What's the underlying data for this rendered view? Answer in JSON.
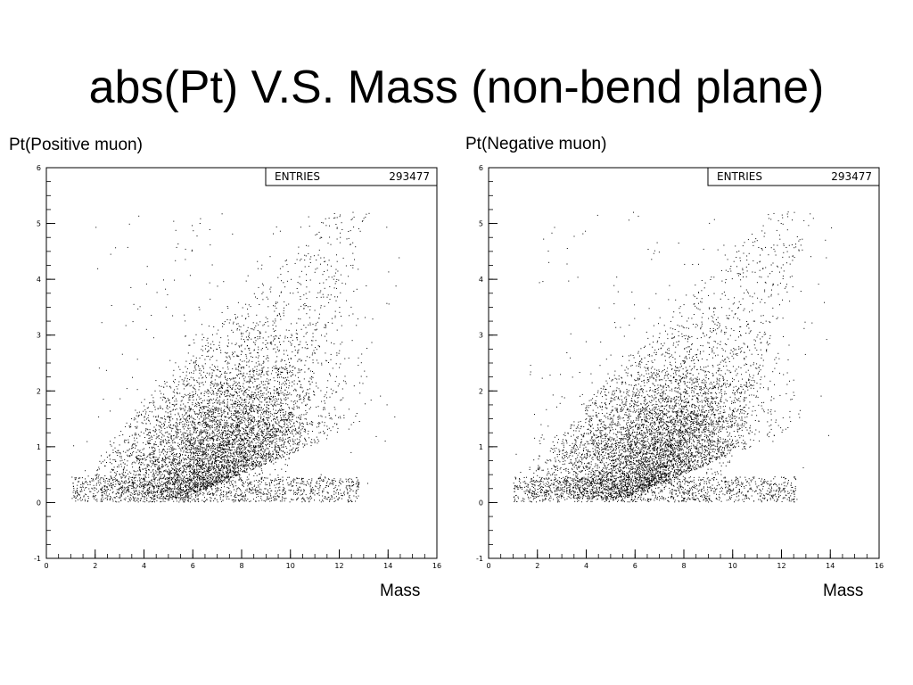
{
  "slide": {
    "title": "abs(Pt) V.S. Mass (non-bend plane)"
  },
  "chart_data": [
    {
      "type": "scatter",
      "ylabel": "Pt(Positive muon)",
      "xlabel": "Mass",
      "xlim": [
        0,
        16
      ],
      "ylim": [
        -1,
        6
      ],
      "x_ticks": [
        "0",
        "2",
        "4",
        "6",
        "8",
        "10",
        "12",
        "14",
        "16"
      ],
      "y_ticks": [
        "-1",
        "0",
        "1",
        "2",
        "3",
        "4",
        "5",
        "6"
      ],
      "stats_box": {
        "label": "ENTRIES",
        "value": "293477"
      },
      "legend_position": "top-right",
      "grid": false,
      "marker_color": "#000000",
      "distribution": {
        "x_range": [
          1,
          15
        ],
        "y_range": [
          0,
          5.3
        ],
        "core_mass": 7,
        "core_pt": 0.8
      }
    },
    {
      "type": "scatter",
      "ylabel": "Pt(Negative muon)",
      "xlabel": "Mass",
      "xlim": [
        0,
        16
      ],
      "ylim": [
        -1,
        6
      ],
      "x_ticks": [
        "0",
        "2",
        "4",
        "6",
        "8",
        "10",
        "12",
        "14",
        "16"
      ],
      "y_ticks": [
        "-1",
        "0",
        "1",
        "2",
        "3",
        "4",
        "5",
        "6"
      ],
      "stats_box": {
        "label": "ENTRIES",
        "value": "293477"
      },
      "legend_position": "top-right",
      "grid": false,
      "marker_color": "#000000",
      "distribution": {
        "x_range": [
          1,
          15
        ],
        "y_range": [
          0,
          5.3
        ],
        "core_mass": 7,
        "core_pt": 0.8
      }
    }
  ]
}
